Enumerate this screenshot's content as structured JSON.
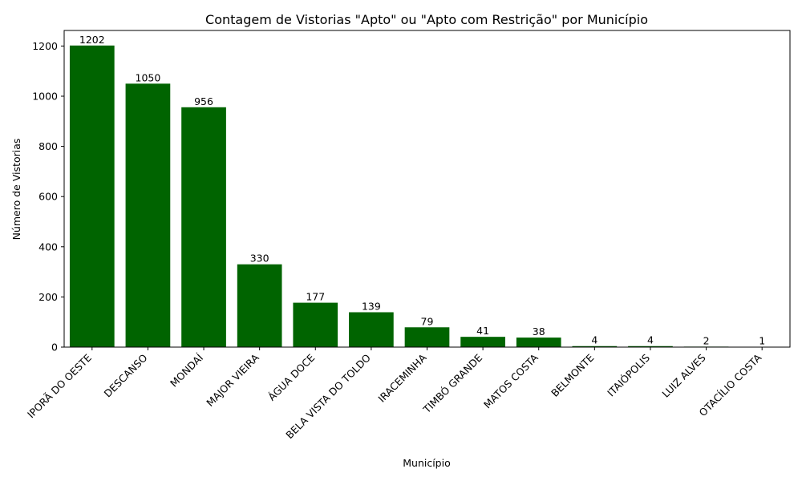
{
  "chart_data": {
    "type": "bar",
    "title": "Contagem de Vistorias \"Apto\" ou \"Apto com Restrição\" por Município",
    "xlabel": "Município",
    "ylabel": "Número de Vistorias",
    "categories": [
      "IPORÃ DO OESTE",
      "DESCANSO",
      "MONDAÍ",
      "MAJOR VIEIRA",
      "ÁGUA DOCE",
      "BELA VISTA DO TOLDO",
      "IRACEMINHA",
      "TIMBÓ GRANDE",
      "MATOS COSTA",
      "BELMONTE",
      "ITAIÓPOLIS",
      "LUIZ ALVES",
      "OTACÍLIO COSTA"
    ],
    "values": [
      1202,
      1050,
      956,
      330,
      177,
      139,
      79,
      41,
      38,
      4,
      4,
      2,
      1
    ],
    "data_labels": [
      "1202",
      "1050",
      "956",
      "330",
      "177",
      "139",
      "79",
      "41",
      "38",
      "4",
      "4",
      "2",
      "1"
    ],
    "ylim": [
      0,
      1262
    ],
    "yticks": [
      0,
      200,
      400,
      600,
      800,
      1000,
      1200
    ],
    "bar_color": "#006400",
    "grid": false
  }
}
